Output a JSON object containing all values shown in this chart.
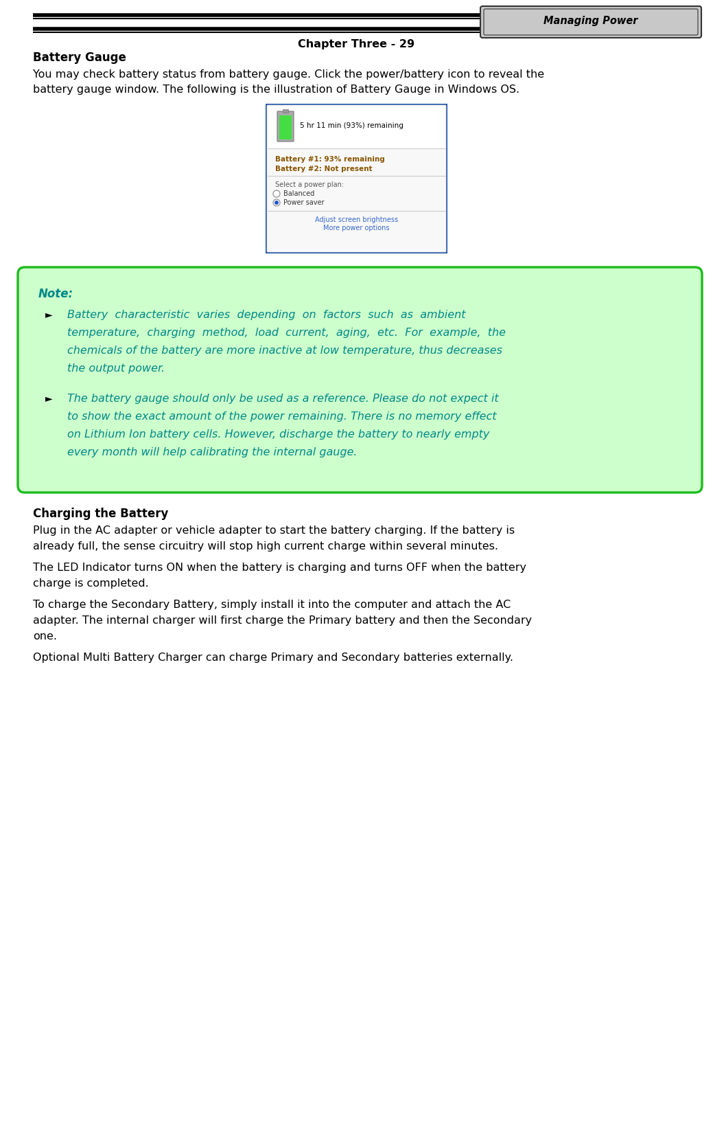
{
  "page_width": 10.39,
  "page_height": 16.48,
  "dpi": 100,
  "bg_color": "#ffffff",
  "header_tab_text": "Managing Power",
  "header_tab_bg": "#c8c8c8",
  "footer_text": "Chapter Three - 29",
  "section1_title": "Battery Gauge",
  "section1_line1": "You may check battery status from battery gauge. Click the power/battery icon to reveal the",
  "section1_line2": "battery gauge window. The following is the illustration of Battery Gauge in Windows OS.",
  "note_box_bg": "#ccffcc",
  "note_box_border": "#22bb22",
  "note_title": "Note:",
  "note_color": "#008888",
  "note_b1_lines": [
    "Battery  characteristic  varies  depending  on  factors  such  as  ambient",
    "temperature,  charging  method,  load  current,  aging,  etc.  For  example,  the",
    "chemicals of the battery are more inactive at low temperature, thus decreases",
    "the output power."
  ],
  "note_b2_lines": [
    "The battery gauge should only be used as a reference. Please do not expect it",
    "to show the exact amount of the power remaining. There is no memory effect",
    "on Lithium Ion battery cells. However, discharge the battery to nearly empty",
    "every month will help calibrating the internal gauge."
  ],
  "section2_title": "Charging the Battery",
  "section2_para1_lines": [
    "Plug in the AC adapter or vehicle adapter to start the battery charging. If the battery is",
    "already full, the sense circuitry will stop high current charge within several minutes."
  ],
  "section2_para2_lines": [
    "The LED Indicator turns ON when the battery is charging and turns OFF when the battery",
    "charge is completed."
  ],
  "section2_para3_lines": [
    "To charge the Secondary Battery, simply install it into the computer and attach the AC",
    "adapter. The internal charger will first charge the Primary battery and then the Secondary",
    "one."
  ],
  "section2_para4_lines": [
    "Optional Multi Battery Charger can charge Primary and Secondary batteries externally."
  ],
  "batt_popup_text1": "5 hr 11 min (93%) remaining",
  "batt_line1": "Battery #1: 93% remaining",
  "batt_line2": "Battery #2: Not present",
  "batt_plan_label": "Select a power plan:",
  "batt_radio1": "Balanced",
  "batt_radio2": "Power saver",
  "batt_btn": "Adjust screen brightness",
  "batt_link": "More power options"
}
